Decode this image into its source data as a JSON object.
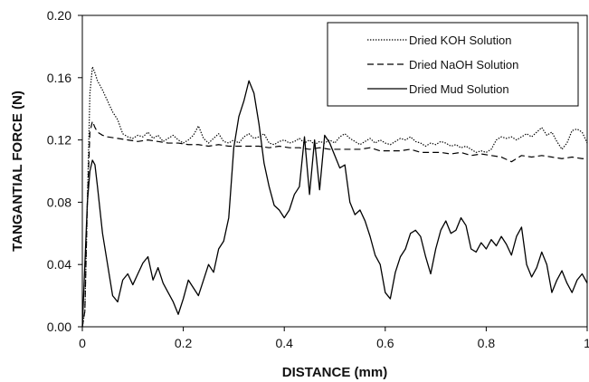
{
  "chart_data": {
    "type": "line",
    "title": "",
    "xlabel": "DISTANCE (mm)",
    "ylabel": "TANGANTIAL  FORCE (N)",
    "xlim": [
      0,
      1
    ],
    "ylim": [
      0,
      0.2
    ],
    "x_ticks": [
      "0",
      "0.2",
      "0.4",
      "0.6",
      "0.8",
      "1"
    ],
    "y_ticks": [
      "0.00",
      "0.04",
      "0.08",
      "0.12",
      "0.16",
      "0.20"
    ],
    "x_tick_values": [
      0,
      0.2,
      0.4,
      0.6,
      0.8,
      1.0
    ],
    "y_tick_values": [
      0,
      0.04,
      0.08,
      0.12,
      0.16,
      0.2
    ],
    "grid": false,
    "legend_position": "top-right",
    "series": [
      {
        "name": "Dried KOH Solution",
        "style": "dotted",
        "color": "#000000",
        "points": [
          [
            0.0,
            0.0
          ],
          [
            0.005,
            0.01
          ],
          [
            0.01,
            0.08
          ],
          [
            0.015,
            0.15
          ],
          [
            0.02,
            0.167
          ],
          [
            0.025,
            0.163
          ],
          [
            0.03,
            0.158
          ],
          [
            0.04,
            0.152
          ],
          [
            0.05,
            0.145
          ],
          [
            0.06,
            0.138
          ],
          [
            0.07,
            0.133
          ],
          [
            0.08,
            0.124
          ],
          [
            0.09,
            0.122
          ],
          [
            0.1,
            0.121
          ],
          [
            0.11,
            0.123
          ],
          [
            0.12,
            0.122
          ],
          [
            0.13,
            0.125
          ],
          [
            0.14,
            0.121
          ],
          [
            0.15,
            0.123
          ],
          [
            0.16,
            0.119
          ],
          [
            0.17,
            0.121
          ],
          [
            0.18,
            0.123
          ],
          [
            0.19,
            0.12
          ],
          [
            0.2,
            0.118
          ],
          [
            0.21,
            0.12
          ],
          [
            0.22,
            0.123
          ],
          [
            0.23,
            0.129
          ],
          [
            0.24,
            0.121
          ],
          [
            0.25,
            0.118
          ],
          [
            0.26,
            0.121
          ],
          [
            0.27,
            0.124
          ],
          [
            0.28,
            0.119
          ],
          [
            0.29,
            0.118
          ],
          [
            0.3,
            0.12
          ],
          [
            0.31,
            0.118
          ],
          [
            0.32,
            0.122
          ],
          [
            0.33,
            0.124
          ],
          [
            0.34,
            0.121
          ],
          [
            0.35,
            0.122
          ],
          [
            0.36,
            0.124
          ],
          [
            0.37,
            0.118
          ],
          [
            0.38,
            0.117
          ],
          [
            0.39,
            0.119
          ],
          [
            0.4,
            0.12
          ],
          [
            0.41,
            0.118
          ],
          [
            0.42,
            0.119
          ],
          [
            0.43,
            0.121
          ],
          [
            0.44,
            0.118
          ],
          [
            0.45,
            0.12
          ],
          [
            0.46,
            0.117
          ],
          [
            0.47,
            0.119
          ],
          [
            0.48,
            0.118
          ],
          [
            0.49,
            0.12
          ],
          [
            0.5,
            0.118
          ],
          [
            0.51,
            0.122
          ],
          [
            0.52,
            0.124
          ],
          [
            0.53,
            0.121
          ],
          [
            0.54,
            0.119
          ],
          [
            0.55,
            0.117
          ],
          [
            0.56,
            0.119
          ],
          [
            0.57,
            0.121
          ],
          [
            0.58,
            0.118
          ],
          [
            0.59,
            0.12
          ],
          [
            0.6,
            0.118
          ],
          [
            0.61,
            0.117
          ],
          [
            0.62,
            0.119
          ],
          [
            0.63,
            0.121
          ],
          [
            0.64,
            0.12
          ],
          [
            0.65,
            0.122
          ],
          [
            0.66,
            0.119
          ],
          [
            0.67,
            0.118
          ],
          [
            0.68,
            0.116
          ],
          [
            0.69,
            0.118
          ],
          [
            0.7,
            0.117
          ],
          [
            0.71,
            0.119
          ],
          [
            0.72,
            0.118
          ],
          [
            0.73,
            0.116
          ],
          [
            0.74,
            0.117
          ],
          [
            0.75,
            0.115
          ],
          [
            0.76,
            0.116
          ],
          [
            0.77,
            0.114
          ],
          [
            0.78,
            0.112
          ],
          [
            0.79,
            0.113
          ],
          [
            0.8,
            0.112
          ],
          [
            0.81,
            0.114
          ],
          [
            0.82,
            0.12
          ],
          [
            0.83,
            0.122
          ],
          [
            0.84,
            0.121
          ],
          [
            0.85,
            0.122
          ],
          [
            0.86,
            0.12
          ],
          [
            0.87,
            0.122
          ],
          [
            0.88,
            0.124
          ],
          [
            0.89,
            0.122
          ],
          [
            0.9,
            0.125
          ],
          [
            0.91,
            0.128
          ],
          [
            0.92,
            0.123
          ],
          [
            0.93,
            0.125
          ],
          [
            0.94,
            0.119
          ],
          [
            0.95,
            0.114
          ],
          [
            0.96,
            0.118
          ],
          [
            0.97,
            0.126
          ],
          [
            0.98,
            0.127
          ],
          [
            0.99,
            0.125
          ],
          [
            1.0,
            0.118
          ]
        ]
      },
      {
        "name": "Dried NaOH Solution",
        "style": "dashed",
        "color": "#000000",
        "points": [
          [
            0.0,
            0.0
          ],
          [
            0.005,
            0.01
          ],
          [
            0.01,
            0.08
          ],
          [
            0.015,
            0.125
          ],
          [
            0.02,
            0.132
          ],
          [
            0.025,
            0.128
          ],
          [
            0.03,
            0.125
          ],
          [
            0.04,
            0.123
          ],
          [
            0.05,
            0.122
          ],
          [
            0.07,
            0.121
          ],
          [
            0.09,
            0.12
          ],
          [
            0.11,
            0.119
          ],
          [
            0.13,
            0.12
          ],
          [
            0.15,
            0.119
          ],
          [
            0.17,
            0.118
          ],
          [
            0.19,
            0.118
          ],
          [
            0.21,
            0.117
          ],
          [
            0.23,
            0.117
          ],
          [
            0.25,
            0.116
          ],
          [
            0.27,
            0.117
          ],
          [
            0.29,
            0.116
          ],
          [
            0.31,
            0.116
          ],
          [
            0.33,
            0.116
          ],
          [
            0.35,
            0.116
          ],
          [
            0.37,
            0.115
          ],
          [
            0.39,
            0.116
          ],
          [
            0.41,
            0.115
          ],
          [
            0.43,
            0.115
          ],
          [
            0.45,
            0.114
          ],
          [
            0.47,
            0.115
          ],
          [
            0.49,
            0.114
          ],
          [
            0.51,
            0.114
          ],
          [
            0.53,
            0.114
          ],
          [
            0.55,
            0.114
          ],
          [
            0.57,
            0.115
          ],
          [
            0.59,
            0.113
          ],
          [
            0.61,
            0.113
          ],
          [
            0.63,
            0.113
          ],
          [
            0.65,
            0.114
          ],
          [
            0.67,
            0.112
          ],
          [
            0.69,
            0.112
          ],
          [
            0.71,
            0.112
          ],
          [
            0.73,
            0.111
          ],
          [
            0.75,
            0.112
          ],
          [
            0.77,
            0.11
          ],
          [
            0.79,
            0.111
          ],
          [
            0.81,
            0.11
          ],
          [
            0.83,
            0.109
          ],
          [
            0.85,
            0.106
          ],
          [
            0.86,
            0.108
          ],
          [
            0.87,
            0.11
          ],
          [
            0.89,
            0.109
          ],
          [
            0.91,
            0.11
          ],
          [
            0.93,
            0.109
          ],
          [
            0.95,
            0.108
          ],
          [
            0.97,
            0.109
          ],
          [
            0.99,
            0.108
          ],
          [
            1.0,
            0.108
          ]
        ]
      },
      {
        "name": "Dried Mud Solution",
        "style": "solid",
        "color": "#000000",
        "points": [
          [
            0.0,
            0.0
          ],
          [
            0.005,
            0.04
          ],
          [
            0.01,
            0.08
          ],
          [
            0.015,
            0.1
          ],
          [
            0.02,
            0.107
          ],
          [
            0.025,
            0.104
          ],
          [
            0.03,
            0.09
          ],
          [
            0.04,
            0.06
          ],
          [
            0.05,
            0.04
          ],
          [
            0.06,
            0.02
          ],
          [
            0.07,
            0.016
          ],
          [
            0.08,
            0.03
          ],
          [
            0.09,
            0.034
          ],
          [
            0.1,
            0.027
          ],
          [
            0.11,
            0.034
          ],
          [
            0.12,
            0.041
          ],
          [
            0.13,
            0.045
          ],
          [
            0.14,
            0.03
          ],
          [
            0.15,
            0.038
          ],
          [
            0.16,
            0.028
          ],
          [
            0.17,
            0.022
          ],
          [
            0.18,
            0.016
          ],
          [
            0.19,
            0.008
          ],
          [
            0.2,
            0.018
          ],
          [
            0.21,
            0.03
          ],
          [
            0.22,
            0.025
          ],
          [
            0.23,
            0.02
          ],
          [
            0.24,
            0.03
          ],
          [
            0.25,
            0.04
          ],
          [
            0.26,
            0.035
          ],
          [
            0.27,
            0.05
          ],
          [
            0.28,
            0.055
          ],
          [
            0.29,
            0.07
          ],
          [
            0.3,
            0.115
          ],
          [
            0.31,
            0.135
          ],
          [
            0.32,
            0.145
          ],
          [
            0.33,
            0.158
          ],
          [
            0.34,
            0.15
          ],
          [
            0.35,
            0.13
          ],
          [
            0.36,
            0.105
          ],
          [
            0.37,
            0.09
          ],
          [
            0.38,
            0.078
          ],
          [
            0.39,
            0.075
          ],
          [
            0.4,
            0.07
          ],
          [
            0.41,
            0.075
          ],
          [
            0.42,
            0.085
          ],
          [
            0.43,
            0.09
          ],
          [
            0.44,
            0.122
          ],
          [
            0.45,
            0.085
          ],
          [
            0.46,
            0.12
          ],
          [
            0.47,
            0.088
          ],
          [
            0.48,
            0.123
          ],
          [
            0.49,
            0.118
          ],
          [
            0.5,
            0.11
          ],
          [
            0.51,
            0.102
          ],
          [
            0.52,
            0.104
          ],
          [
            0.53,
            0.08
          ],
          [
            0.54,
            0.072
          ],
          [
            0.55,
            0.075
          ],
          [
            0.56,
            0.068
          ],
          [
            0.57,
            0.058
          ],
          [
            0.58,
            0.046
          ],
          [
            0.59,
            0.04
          ],
          [
            0.6,
            0.022
          ],
          [
            0.61,
            0.018
          ],
          [
            0.62,
            0.035
          ],
          [
            0.63,
            0.045
          ],
          [
            0.64,
            0.05
          ],
          [
            0.65,
            0.06
          ],
          [
            0.66,
            0.062
          ],
          [
            0.67,
            0.058
          ],
          [
            0.68,
            0.045
          ],
          [
            0.69,
            0.034
          ],
          [
            0.7,
            0.05
          ],
          [
            0.71,
            0.062
          ],
          [
            0.72,
            0.068
          ],
          [
            0.73,
            0.06
          ],
          [
            0.74,
            0.062
          ],
          [
            0.75,
            0.07
          ],
          [
            0.76,
            0.065
          ],
          [
            0.77,
            0.05
          ],
          [
            0.78,
            0.048
          ],
          [
            0.79,
            0.054
          ],
          [
            0.8,
            0.05
          ],
          [
            0.81,
            0.056
          ],
          [
            0.82,
            0.052
          ],
          [
            0.83,
            0.058
          ],
          [
            0.84,
            0.053
          ],
          [
            0.85,
            0.046
          ],
          [
            0.86,
            0.058
          ],
          [
            0.87,
            0.064
          ],
          [
            0.88,
            0.04
          ],
          [
            0.89,
            0.032
          ],
          [
            0.9,
            0.038
          ],
          [
            0.91,
            0.048
          ],
          [
            0.92,
            0.04
          ],
          [
            0.93,
            0.022
          ],
          [
            0.94,
            0.03
          ],
          [
            0.95,
            0.036
          ],
          [
            0.96,
            0.028
          ],
          [
            0.97,
            0.022
          ],
          [
            0.98,
            0.03
          ],
          [
            0.99,
            0.034
          ],
          [
            1.0,
            0.028
          ]
        ]
      }
    ]
  }
}
